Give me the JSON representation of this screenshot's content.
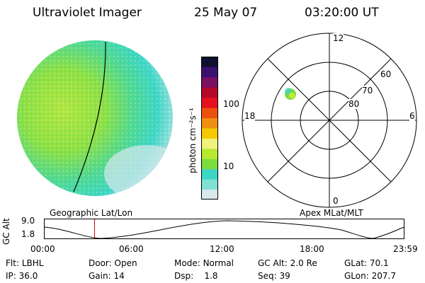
{
  "header": {
    "instrument": "Ultraviolet Imager",
    "date": "25 May 07",
    "time": "03:20:00 UT"
  },
  "colorbar": {
    "unit_label": "photon cm⁻²s⁻¹",
    "tick_labels": [
      "100",
      "10"
    ],
    "colors": [
      "#d8e8ec",
      "#7fe0d4",
      "#3cd6c4",
      "#7ddc3c",
      "#b8e830",
      "#f0f27a",
      "#f6c800",
      "#f09010",
      "#ee5010",
      "#e81020",
      "#b40828",
      "#7a1060",
      "#3c1070",
      "#101030"
    ]
  },
  "polar": {
    "mlt_labels": {
      "top": "12",
      "left": "18",
      "right": "6",
      "bottom": "0"
    },
    "lat_labels": [
      "60",
      "70",
      "80"
    ]
  },
  "footer": {
    "left_label": "Geographic Lat/Lon",
    "right_label": "Apex MLat/MLT",
    "y_axis_label": "GC Alt",
    "y_tick_top": "9.0",
    "y_tick_bottom": "1.8",
    "time_ticks": [
      "00:00",
      "06:00",
      "12:00",
      "18:00",
      "23:59"
    ],
    "marker_time_fraction": 0.139
  },
  "status": {
    "flt_label": "Flt:",
    "flt_value": "LBHL",
    "ip_label": "IP:",
    "ip_value": "36.0",
    "door_label": "Door:",
    "door_value": "Open",
    "gain_label": "Gain:",
    "gain_value": "14",
    "mode_label": "Mode:",
    "mode_value": "Normal",
    "dsp_label": "Dsp:",
    "dsp_value": "1.8",
    "gcalt_label": "GC Alt:",
    "gcalt_value": "2.0 Re",
    "seq_label": "Seq:",
    "seq_value": "39",
    "glat_label": "GLat:",
    "glat_value": "70.1",
    "glon_label": "GLon:",
    "glon_value": "207.7"
  }
}
